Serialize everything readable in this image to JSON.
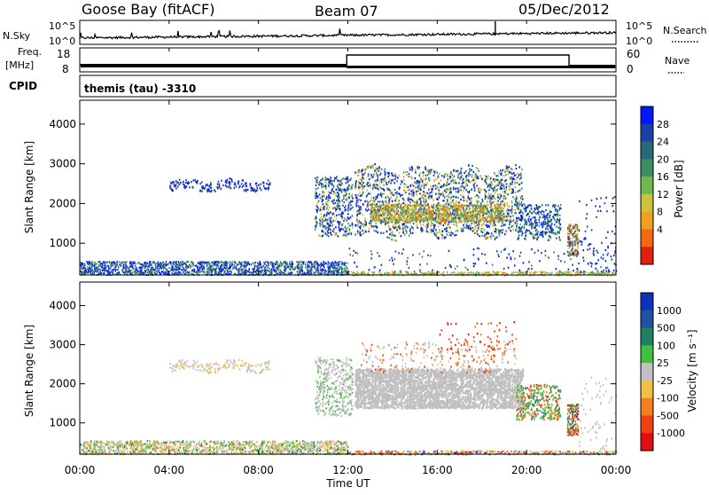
{
  "header": {
    "station": "Goose Bay (fitACF)",
    "beam": "Beam 07",
    "date": "05/Dec/2012"
  },
  "top_panels": {
    "nsky_label": "N.Sky",
    "nsky_ticks": [
      "10^5",
      "10^0"
    ],
    "nsearch_label": "N.Search",
    "nsearch_ticks": [
      "10^5",
      "10^0"
    ],
    "freq_label": "Freq.",
    "freq_unit": "[MHz]",
    "freq_ticks": [
      "18",
      "8"
    ],
    "nave_label": "Nave",
    "nave_ticks": [
      "60",
      "0"
    ],
    "cpid_label": "CPID",
    "cpid_text": "themis (tau) -3310"
  },
  "chart_data": [
    {
      "type": "heatmap",
      "name": "power",
      "ylabel": "Slant Range [km]",
      "xlabel": "",
      "ylim": [
        200,
        4600
      ],
      "xlim_hours": [
        0,
        24
      ],
      "y_ticks": [
        "1000",
        "2000",
        "3000",
        "4000"
      ],
      "colorbar_label": "Power [dB]",
      "colorbar_ticks": [
        "4",
        "8",
        "12",
        "16",
        "20",
        "24",
        "28"
      ],
      "colorbar_colors": [
        "#0018ff",
        "#1f3fa8",
        "#256a78",
        "#3b8f67",
        "#6fb84a",
        "#c9c23a",
        "#f0a020",
        "#f26a10",
        "#e02010"
      ]
    },
    {
      "type": "heatmap",
      "name": "velocity",
      "ylabel": "Slant Range [km]",
      "xlabel": "Time UT",
      "ylim": [
        200,
        4600
      ],
      "xlim_hours": [
        0,
        24
      ],
      "y_ticks": [
        "1000",
        "2000",
        "3000",
        "4000"
      ],
      "x_ticks": [
        "00:00",
        "04:00",
        "08:00",
        "12:00",
        "16:00",
        "20:00",
        "00:00"
      ],
      "colorbar_label": "Velocity [m s⁻¹]",
      "colorbar_ticks": [
        "1000",
        "500",
        "100",
        "25",
        "-25",
        "-100",
        "-500",
        "-1000"
      ],
      "colorbar_colors": [
        "#1030c0",
        "#2050a0",
        "#208060",
        "#40c040",
        "#c0c0c0",
        "#f0c040",
        "#f08020",
        "#f04010",
        "#e01010"
      ]
    }
  ]
}
